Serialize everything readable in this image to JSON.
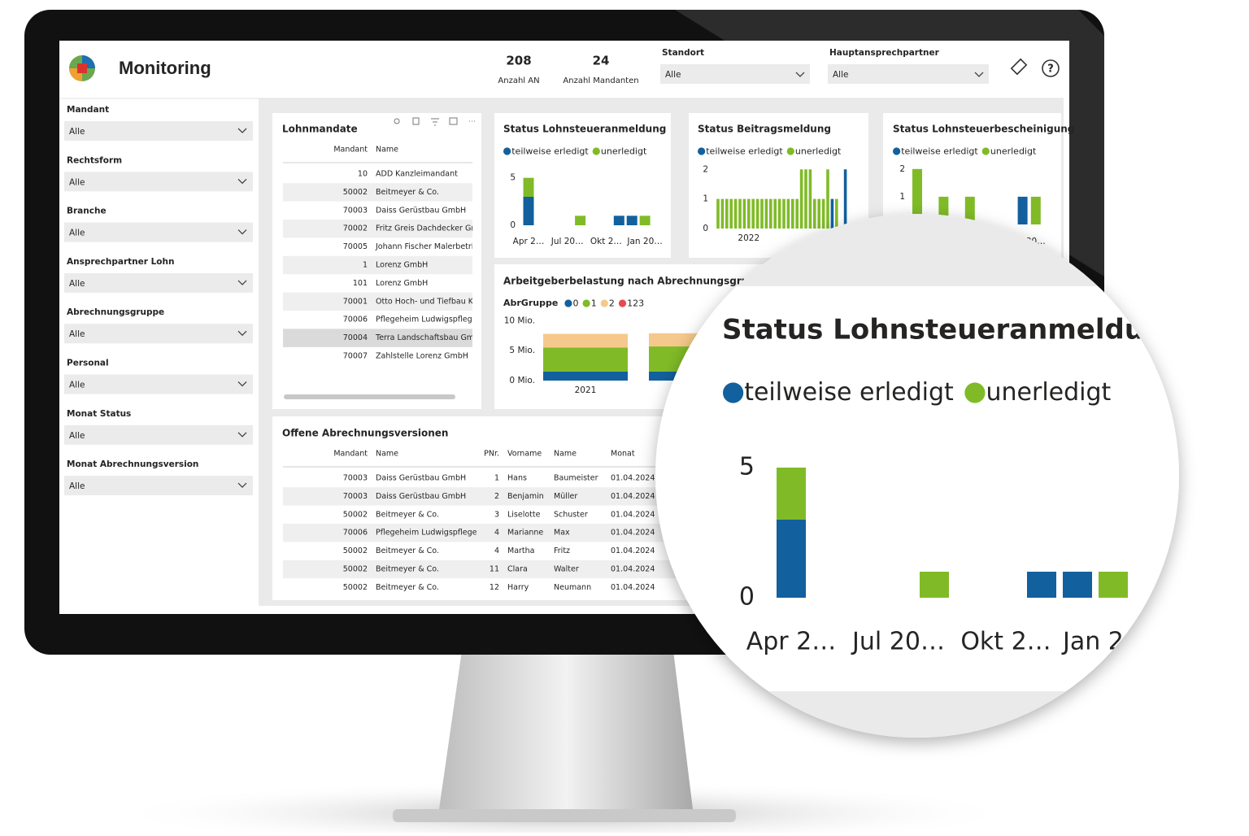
{
  "header": {
    "title": "Monitoring",
    "kpis": [
      {
        "value": 208,
        "label": "Anzahl AN"
      },
      {
        "value": 24,
        "label": "Anzahl Mandanten"
      }
    ],
    "filters": [
      {
        "label": "Standort",
        "value": "Alle"
      },
      {
        "label": "Hauptansprechpartner",
        "value": "Alle"
      }
    ]
  },
  "sidebar": {
    "filters": [
      {
        "label": "Mandant",
        "value": "Alle"
      },
      {
        "label": "Rechtsform",
        "value": "Alle"
      },
      {
        "label": "Branche",
        "value": "Alle"
      },
      {
        "label": "Ansprechpartner Lohn",
        "value": "Alle"
      },
      {
        "label": "Abrechnungsgruppe",
        "value": "Alle"
      },
      {
        "label": "Personal",
        "value": "Alle"
      },
      {
        "label": "Monat Status",
        "value": "Alle"
      },
      {
        "label": "Monat Abrechnungsversion",
        "value": "Alle"
      }
    ]
  },
  "lohnmandate": {
    "title": "Lohnmandate",
    "columns": [
      "Mandant",
      "Name"
    ],
    "rows": [
      [
        10,
        "ADD Kanzleimandant"
      ],
      [
        50002,
        "Beitmeyer & Co."
      ],
      [
        70003,
        "Daiss Gerüstbau GmbH"
      ],
      [
        70002,
        "Fritz Greis Dachdecker Gm"
      ],
      [
        70005,
        "Johann Fischer Malerbetri"
      ],
      [
        1,
        "Lorenz GmbH"
      ],
      [
        101,
        "Lorenz GmbH"
      ],
      [
        70001,
        "Otto Hoch- und Tiefbau K"
      ],
      [
        70006,
        "Pflegeheim Ludwigspflege"
      ],
      [
        70004,
        "Terra Landschaftsbau Gmb"
      ],
      [
        70007,
        "Zahlstelle Lorenz GmbH"
      ]
    ]
  },
  "charts": [
    {
      "type": "bar",
      "title": "Status Lohnsteueranmeldung",
      "stacked": true,
      "categories": [
        "Apr 2…",
        null,
        null,
        "Jul 20…",
        null,
        null,
        "Okt 2…",
        null,
        null,
        "Jan 20…"
      ],
      "series": [
        {
          "name": "teilweise erledigt",
          "color": "#12609e",
          "values": [
            3,
            0,
            0,
            0,
            0,
            0,
            0,
            1,
            1,
            0
          ]
        },
        {
          "name": "unerledigt",
          "color": "#80bb27",
          "values": [
            2,
            0,
            0,
            0,
            1,
            0,
            0,
            0,
            0,
            1
          ]
        }
      ],
      "ylim": [
        0,
        6
      ],
      "yticks": [
        0,
        5
      ]
    },
    {
      "type": "bar",
      "title": "Status Beitragsmeldung",
      "stacked": true,
      "categories": [
        null,
        null,
        null,
        null,
        null,
        null,
        null,
        "2022",
        null,
        null,
        null,
        null,
        null,
        null,
        null,
        null,
        null,
        null,
        null,
        null,
        null,
        null,
        null,
        null,
        null,
        null,
        null,
        null,
        null,
        null
      ],
      "series": [
        {
          "name": "teilweise erledigt",
          "color": "#12609e",
          "values": [
            0,
            0,
            0,
            0,
            0,
            0,
            0,
            0,
            0,
            0,
            0,
            0,
            0,
            0,
            0,
            0,
            0,
            0,
            0,
            0,
            0,
            0,
            0,
            0,
            0,
            0,
            1,
            0,
            0,
            2
          ]
        },
        {
          "name": "unerledigt",
          "color": "#80bb27",
          "values": [
            1,
            1,
            1,
            1,
            1,
            1,
            1,
            1,
            1,
            1,
            1,
            1,
            1,
            1,
            1,
            1,
            1,
            1,
            1,
            2,
            2,
            2,
            1,
            1,
            1,
            2,
            0,
            1,
            0,
            0
          ]
        }
      ],
      "ylim": [
        0,
        2.2
      ],
      "yticks": [
        0,
        1,
        2
      ]
    },
    {
      "type": "bar",
      "title": "Status Lohnsteuerbescheinigung",
      "stacked": true,
      "categories": [
        null,
        null,
        null,
        null,
        null,
        null,
        null,
        null,
        null,
        "20…"
      ],
      "series": [
        {
          "name": "teilweise erledigt",
          "color": "#12609e",
          "values": [
            0,
            0,
            0,
            0,
            0,
            0,
            0,
            0,
            1,
            0
          ]
        },
        {
          "name": "unerledigt",
          "color": "#80bb27",
          "values": [
            2,
            0,
            1,
            0,
            1,
            0,
            0,
            0,
            0,
            1
          ]
        }
      ],
      "ylim": [
        0,
        2.2
      ],
      "yticks": [
        1,
        2
      ]
    },
    {
      "type": "bar",
      "title": "Arbeitgeberbelastung nach Abrechnungsgruppe u",
      "legend_title": "AbrGruppe",
      "stacked": true,
      "categories": [
        "2021",
        null
      ],
      "series": [
        {
          "name": "0",
          "color": "#12609e",
          "values": [
            1500000,
            1500000
          ]
        },
        {
          "name": "1",
          "color": "#80bb27",
          "values": [
            4000000,
            4200000
          ]
        },
        {
          "name": "2",
          "color": "#f5c98b",
          "values": [
            2300000,
            2200000
          ]
        },
        {
          "name": "123",
          "color": "#e8484d",
          "values": [
            0,
            0
          ]
        }
      ],
      "ylim": [
        0,
        11000000
      ],
      "yticks": [
        {
          "value": 0,
          "label": "0 Mio."
        },
        {
          "value": 5000000,
          "label": "5 Mio."
        },
        {
          "value": 10000000,
          "label": "10 Mio."
        }
      ]
    }
  ],
  "offene": {
    "title": "Offene Abrechnungsversionen",
    "columns": [
      "Mandant",
      "Name",
      "PNr.",
      "Vorname",
      "Name",
      "Monat"
    ],
    "rows": [
      [
        70003,
        "Daiss Gerüstbau GmbH",
        1,
        "Hans",
        "Baumeister",
        "01.04.2024"
      ],
      [
        70003,
        "Daiss Gerüstbau GmbH",
        2,
        "Benjamin",
        "Müller",
        "01.04.2024"
      ],
      [
        50002,
        "Beitmeyer & Co.",
        3,
        "Liselotte",
        "Schuster",
        "01.04.2024"
      ],
      [
        70006,
        "Pflegeheim Ludwigspflege",
        4,
        "Marianne",
        "Max",
        "01.04.2024"
      ],
      [
        50002,
        "Beitmeyer & Co.",
        4,
        "Martha",
        "Fritz",
        "01.04.2024"
      ],
      [
        50002,
        "Beitmeyer & Co.",
        11,
        "Clara",
        "Walter",
        "01.04.2024"
      ],
      [
        50002,
        "Beitmeyer & Co.",
        12,
        "Harry",
        "Neumann",
        "01.04.2024"
      ]
    ]
  }
}
